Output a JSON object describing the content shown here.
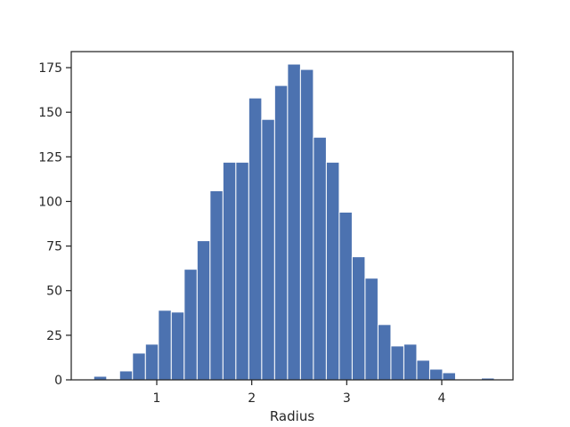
{
  "chart_data": {
    "type": "bar",
    "title": "",
    "xlabel": "Radius",
    "ylabel": "",
    "bar_color": "#4c72b0",
    "edge_color": "#ffffff",
    "grid": false,
    "xlim": [
      0.1,
      4.75
    ],
    "ylim": [
      0,
      184
    ],
    "x_ticks": [
      1,
      2,
      3,
      4
    ],
    "y_ticks": [
      0,
      25,
      50,
      75,
      100,
      125,
      150,
      175
    ],
    "x_tick_labels": [
      "1",
      "2",
      "3",
      "4"
    ],
    "y_tick_labels": [
      "0",
      "25",
      "50",
      "75",
      100,
      "125",
      "150",
      "175"
    ],
    "bins": [
      {
        "start": 0.337,
        "end": 0.473,
        "count": 2
      },
      {
        "start": 0.473,
        "end": 0.609,
        "count": 0
      },
      {
        "start": 0.609,
        "end": 0.745,
        "count": 5
      },
      {
        "start": 0.745,
        "end": 0.881,
        "count": 15
      },
      {
        "start": 0.881,
        "end": 1.017,
        "count": 20
      },
      {
        "start": 1.017,
        "end": 1.153,
        "count": 39
      },
      {
        "start": 1.153,
        "end": 1.289,
        "count": 38
      },
      {
        "start": 1.289,
        "end": 1.425,
        "count": 62
      },
      {
        "start": 1.425,
        "end": 1.561,
        "count": 78
      },
      {
        "start": 1.561,
        "end": 1.697,
        "count": 106
      },
      {
        "start": 1.697,
        "end": 1.833,
        "count": 122
      },
      {
        "start": 1.833,
        "end": 1.969,
        "count": 122
      },
      {
        "start": 1.969,
        "end": 2.105,
        "count": 158
      },
      {
        "start": 2.105,
        "end": 2.241,
        "count": 146
      },
      {
        "start": 2.241,
        "end": 2.377,
        "count": 165
      },
      {
        "start": 2.377,
        "end": 2.513,
        "count": 177
      },
      {
        "start": 2.513,
        "end": 2.649,
        "count": 174
      },
      {
        "start": 2.649,
        "end": 2.785,
        "count": 136
      },
      {
        "start": 2.785,
        "end": 2.921,
        "count": 122
      },
      {
        "start": 2.921,
        "end": 3.057,
        "count": 94
      },
      {
        "start": 3.057,
        "end": 3.193,
        "count": 69
      },
      {
        "start": 3.193,
        "end": 3.329,
        "count": 57
      },
      {
        "start": 3.329,
        "end": 3.465,
        "count": 31
      },
      {
        "start": 3.465,
        "end": 3.601,
        "count": 19
      },
      {
        "start": 3.601,
        "end": 3.737,
        "count": 20
      },
      {
        "start": 3.737,
        "end": 3.873,
        "count": 11
      },
      {
        "start": 3.873,
        "end": 4.009,
        "count": 6
      },
      {
        "start": 4.009,
        "end": 4.145,
        "count": 4
      },
      {
        "start": 4.145,
        "end": 4.281,
        "count": 0
      },
      {
        "start": 4.281,
        "end": 4.417,
        "count": 0
      },
      {
        "start": 4.417,
        "end": 4.553,
        "count": 1
      }
    ]
  }
}
